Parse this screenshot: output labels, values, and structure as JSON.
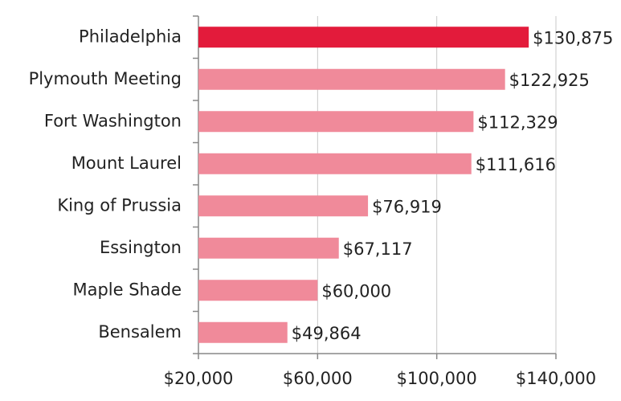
{
  "chart_data": {
    "type": "hbar",
    "categories": [
      "Philadelphia",
      "Plymouth Meeting",
      "Fort Washington",
      "Mount Laurel",
      "King of Prussia",
      "Essington",
      "Maple Shade",
      "Bensalem"
    ],
    "values": [
      130875,
      122925,
      112329,
      111616,
      76919,
      67117,
      60000,
      49864
    ],
    "value_labels": [
      "$130,875",
      "$122,925",
      "$112,329",
      "$111,616",
      "$76,919",
      "$67,117",
      "$60,000",
      "$49,864"
    ],
    "colors": [
      "#e31b3b",
      "#f08a9a",
      "#f08a9a",
      "#f08a9a",
      "#f08a9a",
      "#f08a9a",
      "#f08a9a",
      "#f08a9a"
    ],
    "xlim": [
      20000,
      140000
    ],
    "xticks": [
      {
        "value": 20000,
        "label": "$20,000"
      },
      {
        "value": 60000,
        "label": "$60,000"
      },
      {
        "value": 100000,
        "label": "$100,000"
      },
      {
        "value": 140000,
        "label": "$140,000"
      }
    ],
    "grid": true
  }
}
